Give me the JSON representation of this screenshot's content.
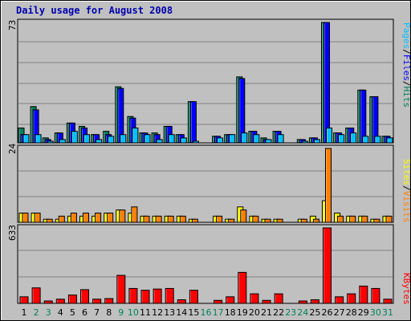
{
  "title": "Daily usage for August 2008",
  "colors": {
    "title": "#0000b0",
    "hits": "#00805c",
    "files": "#0000ff",
    "pages": "#00c0ff",
    "visits": "#ffff00",
    "sites": "#ff8000",
    "kbytes": "#ff0000",
    "weekday_label": "#000000",
    "weekend_label": "#00805c",
    "panel": "#c0c0c0",
    "grid": "#808080"
  },
  "chart_data": [
    {
      "type": "bar",
      "panel": "hits-files-pages",
      "ymax_label": "73",
      "legend": [
        "Pages",
        "/",
        "Files",
        "/",
        "Hits"
      ],
      "categories": [
        "1",
        "2",
        "3",
        "4",
        "5",
        "6",
        "7",
        "8",
        "9",
        "10",
        "11",
        "12",
        "13",
        "14",
        "15",
        "16",
        "17",
        "18",
        "19",
        "20",
        "21",
        "22",
        "23",
        "24",
        "25",
        "26",
        "27",
        "28",
        "29",
        "30",
        "31"
      ],
      "weekend": [
        false,
        true,
        true,
        false,
        false,
        false,
        false,
        false,
        true,
        true,
        false,
        false,
        false,
        false,
        false,
        true,
        true,
        false,
        false,
        false,
        false,
        false,
        true,
        true,
        false,
        false,
        false,
        false,
        false,
        true,
        true
      ],
      "series": [
        {
          "name": "Hits",
          "values": [
            9,
            22,
            3,
            6,
            12,
            10,
            5,
            7,
            34,
            16,
            6,
            6,
            10,
            5,
            25,
            0,
            4,
            5,
            40,
            7,
            3,
            7,
            0,
            2,
            3,
            73,
            6,
            9,
            32,
            28,
            4
          ]
        },
        {
          "name": "Files",
          "values": [
            5,
            20,
            2,
            6,
            12,
            9,
            5,
            5,
            33,
            15,
            6,
            5,
            10,
            5,
            25,
            0,
            4,
            5,
            39,
            7,
            2,
            7,
            0,
            2,
            3,
            73,
            6,
            9,
            32,
            28,
            4
          ]
        },
        {
          "name": "Pages",
          "values": [
            5,
            5,
            1,
            2,
            7,
            5,
            2,
            4,
            5,
            9,
            5,
            2,
            5,
            3,
            1,
            0,
            3,
            5,
            6,
            5,
            2,
            5,
            0,
            1,
            2,
            9,
            5,
            6,
            4,
            4,
            3
          ]
        }
      ],
      "ylim": [
        0,
        73
      ]
    },
    {
      "type": "bar",
      "panel": "sites-visits",
      "ymax_label": "24",
      "legend": [
        "Sites",
        "/",
        "Visits"
      ],
      "categories": [
        "1",
        "2",
        "3",
        "4",
        "5",
        "6",
        "7",
        "8",
        "9",
        "10",
        "11",
        "12",
        "13",
        "14",
        "15",
        "16",
        "17",
        "18",
        "19",
        "20",
        "21",
        "22",
        "23",
        "24",
        "25",
        "26",
        "27",
        "28",
        "29",
        "30",
        "31"
      ],
      "series": [
        {
          "name": "Visits",
          "values": [
            3,
            3,
            1,
            1,
            2,
            2,
            2,
            3,
            4,
            3,
            2,
            2,
            2,
            2,
            1,
            0,
            2,
            1,
            5,
            2,
            1,
            1,
            0,
            1,
            2,
            7,
            3,
            2,
            2,
            1,
            2
          ]
        },
        {
          "name": "Sites",
          "values": [
            3,
            3,
            1,
            2,
            3,
            3,
            3,
            3,
            4,
            5,
            2,
            2,
            2,
            2,
            1,
            0,
            2,
            1,
            4,
            2,
            1,
            1,
            0,
            1,
            1,
            24,
            2,
            2,
            2,
            1,
            2
          ]
        }
      ],
      "ylim": [
        0,
        24
      ]
    },
    {
      "type": "bar",
      "panel": "kbytes",
      "ymax_label": "633",
      "legend": [
        "KBytes"
      ],
      "categories": [
        "1",
        "2",
        "3",
        "4",
        "5",
        "6",
        "7",
        "8",
        "9",
        "10",
        "11",
        "12",
        "13",
        "14",
        "15",
        "16",
        "17",
        "18",
        "19",
        "20",
        "21",
        "22",
        "23",
        "24",
        "25",
        "26",
        "27",
        "28",
        "29",
        "30",
        "31"
      ],
      "series": [
        {
          "name": "KBytes",
          "values": [
            55,
            130,
            20,
            35,
            70,
            115,
            35,
            40,
            235,
            125,
            110,
            120,
            125,
            30,
            110,
            0,
            25,
            55,
            260,
            80,
            25,
            80,
            0,
            20,
            30,
            633,
            55,
            80,
            145,
            125,
            35
          ]
        }
      ],
      "ylim": [
        0,
        633
      ]
    }
  ]
}
